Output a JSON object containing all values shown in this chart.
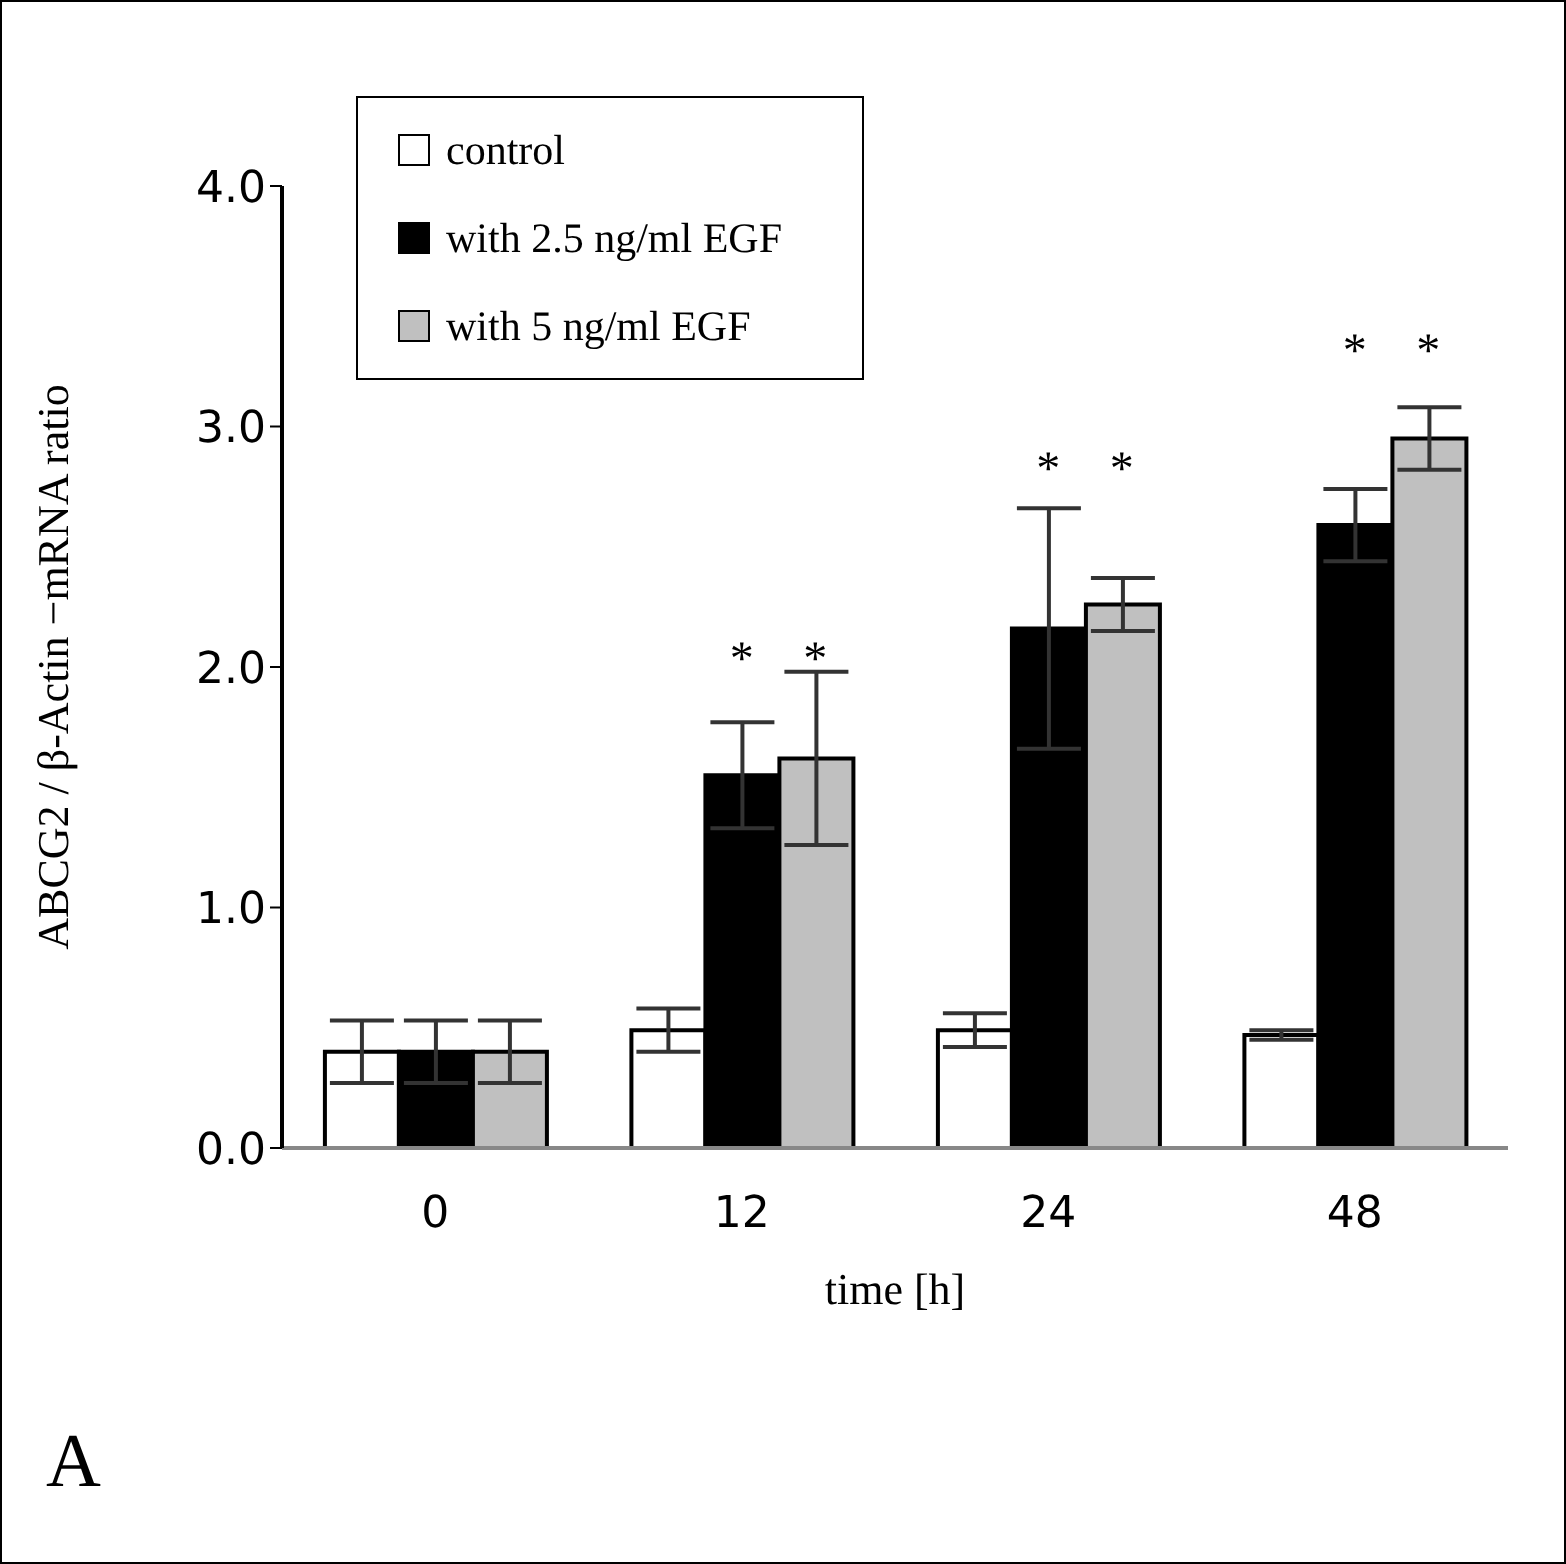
{
  "chart_data": {
    "type": "bar",
    "xlabel": "time [h]",
    "ylabel": "ABCG2 / β-Actin −mRNA  ratio",
    "categories": [
      "0",
      "12",
      "24",
      "48"
    ],
    "series": [
      {
        "name": "control",
        "color": "#ffffff",
        "values": [
          0.4,
          0.49,
          0.49,
          0.47
        ],
        "errors": [
          0.13,
          0.09,
          0.07,
          0.02
        ]
      },
      {
        "name": "with 2.5 ng/ml EGF",
        "color": "#000000",
        "values": [
          0.4,
          1.55,
          2.16,
          2.59
        ],
        "errors": [
          0.13,
          0.22,
          0.5,
          0.15
        ]
      },
      {
        "name": "with 5 ng/ml EGF",
        "color": "#c0c0c0",
        "values": [
          0.4,
          1.62,
          2.26,
          2.95
        ],
        "errors": [
          0.13,
          0.36,
          0.11,
          0.13
        ]
      }
    ],
    "ylim": [
      0,
      4
    ],
    "yticks": [
      {
        "value": 0,
        "label": "0.0"
      },
      {
        "value": 1,
        "label": "1.0"
      },
      {
        "value": 2,
        "label": "2.0"
      },
      {
        "value": 3,
        "label": "3.0"
      },
      {
        "value": 4,
        "label": "4.0"
      }
    ],
    "grid": false,
    "legend": "top left",
    "annotations": [
      "*",
      "*",
      "*",
      "*",
      "*",
      "*",
      "A"
    ]
  }
}
